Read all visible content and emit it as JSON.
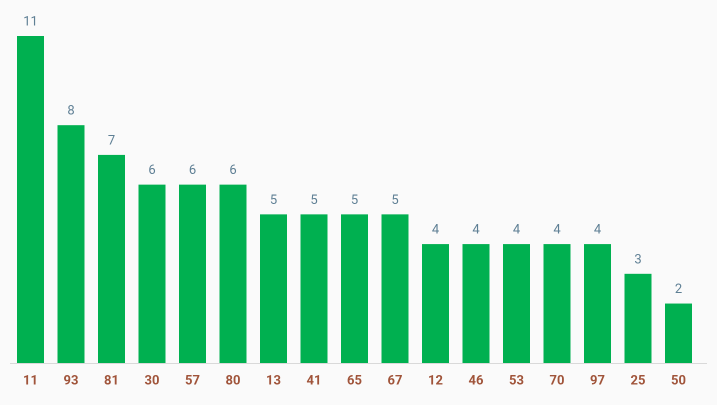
{
  "chart_data": {
    "type": "bar",
    "categories": [
      "11",
      "93",
      "81",
      "30",
      "57",
      "80",
      "13",
      "41",
      "65",
      "67",
      "12",
      "46",
      "53",
      "70",
      "97",
      "25",
      "50"
    ],
    "values": [
      11,
      8,
      7,
      6,
      6,
      6,
      5,
      5,
      5,
      5,
      4,
      4,
      4,
      4,
      4,
      3,
      2
    ],
    "color": "#00b050"
  }
}
